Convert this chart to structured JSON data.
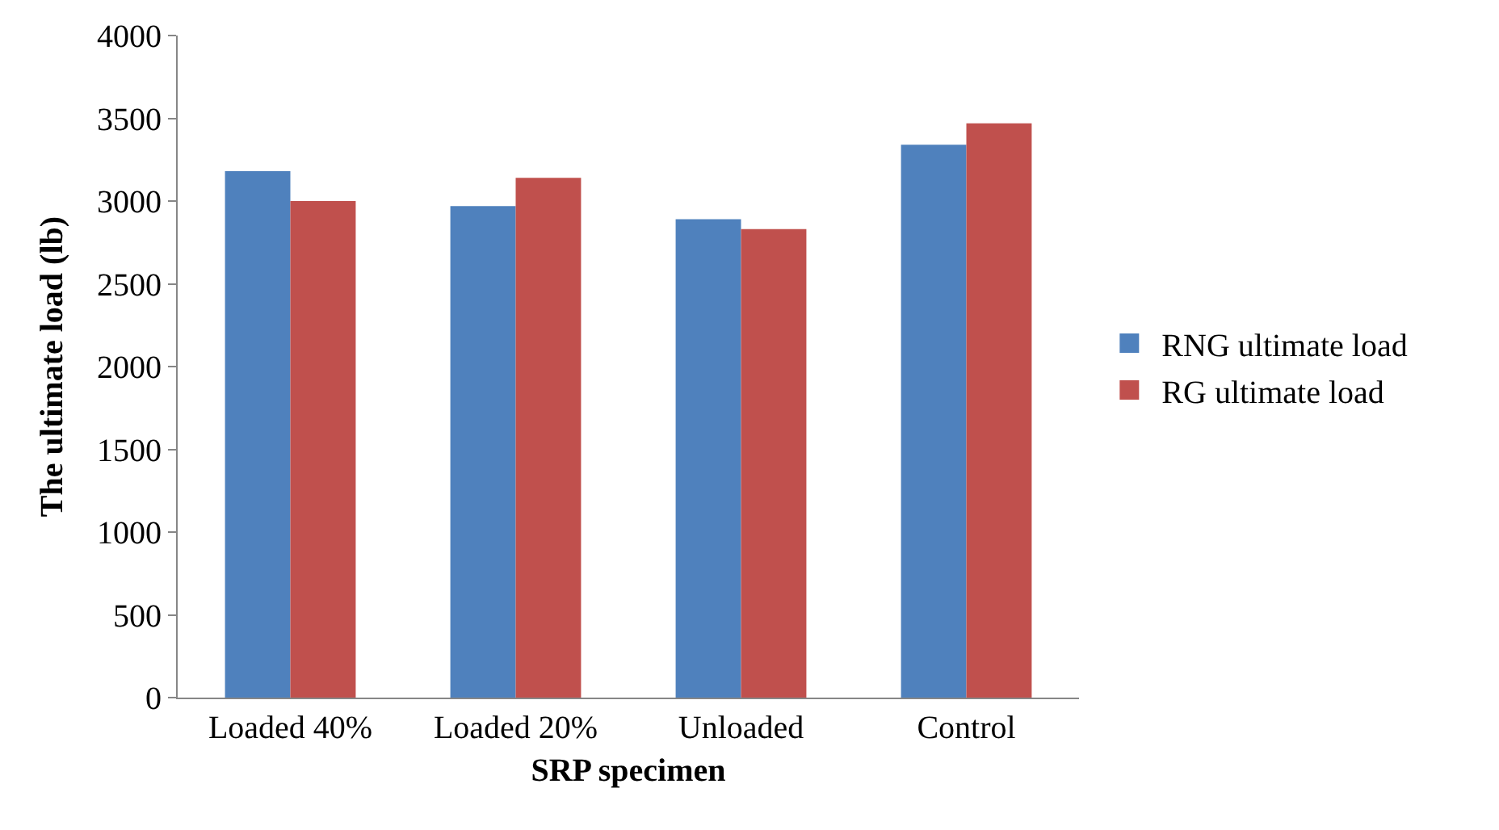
{
  "chart_data": {
    "type": "bar",
    "xlabel": "SRP specimen",
    "ylabel": "The ultimate load (lb)",
    "categories": [
      "Loaded 40%",
      "Loaded 20%",
      "Unloaded",
      "Control"
    ],
    "series": [
      {
        "name": "RNG ultimate load",
        "color": "#4f81bd",
        "values": [
          3180,
          2970,
          2890,
          3340
        ]
      },
      {
        "name": "RG ultimate load",
        "color": "#c0504d",
        "values": [
          3000,
          3140,
          2830,
          3470
        ]
      }
    ],
    "ylim": [
      0,
      4000
    ],
    "yticks": [
      0,
      500,
      1000,
      1500,
      2000,
      2500,
      3000,
      3500,
      4000
    ],
    "legend": "right"
  }
}
